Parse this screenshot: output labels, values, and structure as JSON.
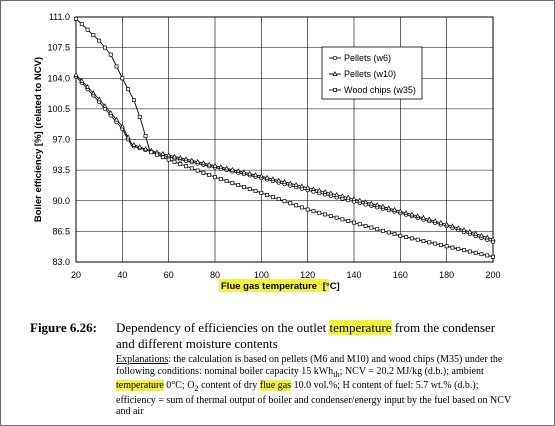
{
  "chart_data": {
    "type": "line",
    "xlabel_prefix": "Flue gas temperature",
    "xlabel_unit": "[°C]",
    "ylabel": "Boiler efficiency [%] (related to NCV)",
    "xlim": [
      20,
      200
    ],
    "ylim": [
      83.0,
      111.0
    ],
    "x_ticks": [
      "20",
      "40",
      "60",
      "80",
      "100",
      "120",
      "140",
      "160",
      "180",
      "200"
    ],
    "y_ticks": [
      "83.0",
      "86.5",
      "90.0",
      "93.5",
      "97.0",
      "100.5",
      "104.0",
      "107.5",
      "111.0"
    ],
    "grid": true,
    "legend_position": "top-right",
    "series": [
      {
        "name": "Pellets (w6)",
        "marker": "circle",
        "x": [
          20,
          30,
          40,
          44,
          50,
          60,
          80,
          100,
          120,
          140,
          160,
          180,
          200
        ],
        "y": [
          104.2,
          101.3,
          98.2,
          96.3,
          95.8,
          95.0,
          93.8,
          92.6,
          91.2,
          89.9,
          88.6,
          87.1,
          85.3
        ]
      },
      {
        "name": "Pellets (w10)",
        "marker": "triangle",
        "x": [
          20,
          30,
          40,
          44,
          50,
          60,
          80,
          100,
          120,
          140,
          160,
          180,
          200
        ],
        "y": [
          104.4,
          101.6,
          98.5,
          96.5,
          95.9,
          95.2,
          94.0,
          92.8,
          91.5,
          90.2,
          88.8,
          87.3,
          85.6
        ]
      },
      {
        "name": "Wood chips (w35)",
        "marker": "square",
        "x": [
          20,
          30,
          35,
          40,
          45,
          48,
          52,
          60,
          80,
          100,
          120,
          140,
          160,
          180,
          200
        ],
        "y": [
          110.8,
          108.3,
          106.7,
          104.0,
          101.5,
          99.2,
          95.6,
          94.7,
          92.7,
          90.9,
          89.0,
          87.5,
          86.0,
          84.8,
          83.6
        ]
      }
    ]
  },
  "caption": {
    "label": "Figure 6.26:",
    "before": "Dependency of efficiencies on the outlet ",
    "highlight": "temperature",
    "after": " from the condenser and different moisture contents"
  },
  "explanation": {
    "label": "Explanations",
    "t1": ": the calculation is based on pellets (M6 and M10) and wood chips (M35) under the following conditions: nominal boiler capacity 15 kWh",
    "sub_th": "th",
    "t2": "; NCV = 20.2 MJ/kg (d.b.); ambient ",
    "hl1": "temperature",
    "t3": " 0°C; O",
    "sub_2": "2",
    "t4": " content of dry ",
    "hl2": "flue gas",
    "t5": " 10.0 vol.%; H content of fuel: 5.7 wt.% (d.b.); efficiency = sum of thermal output of boiler and condenser/energy input by the fuel based on NCV and air"
  }
}
